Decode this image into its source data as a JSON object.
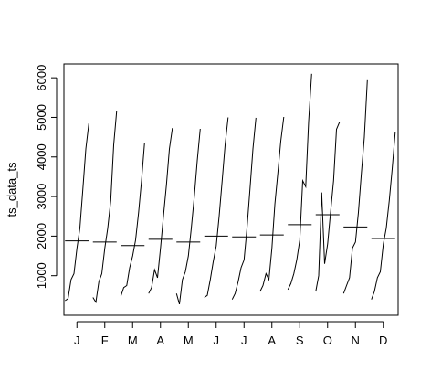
{
  "chart_data": {
    "type": "line",
    "title": "",
    "xlabel": "",
    "ylabel": "ts_data_ts",
    "ylim": [
      0,
      6350
    ],
    "yticks": [
      1000,
      2000,
      3000,
      4000,
      5000,
      6000
    ],
    "ytick_labels": [
      "1000",
      "2000",
      "3000",
      "4000",
      "5000",
      "6000"
    ],
    "categories": [
      "J",
      "F",
      "M",
      "A",
      "M",
      "J",
      "J",
      "A",
      "S",
      "O",
      "N",
      "D"
    ],
    "grid": false,
    "line_color": "#000000",
    "months": [
      {
        "label": "J",
        "mean": 1880,
        "values": [
          370,
          420,
          900,
          1050,
          1700,
          2200,
          3200,
          4200,
          4850
        ]
      },
      {
        "label": "F",
        "mean": 1850,
        "values": [
          450,
          330,
          850,
          1050,
          1700,
          2200,
          2900,
          4300,
          5170
        ]
      },
      {
        "label": "M",
        "mean": 1760,
        "values": [
          480,
          700,
          750,
          1200,
          1500,
          1900,
          2600,
          3400,
          4350
        ]
      },
      {
        "label": "A",
        "mean": 1920,
        "values": [
          550,
          700,
          1150,
          950,
          1700,
          2500,
          3300,
          4200,
          4730
        ]
      },
      {
        "label": "M",
        "mean": 1850,
        "values": [
          550,
          280,
          900,
          1100,
          1500,
          2200,
          3000,
          3900,
          4710
        ]
      },
      {
        "label": "J",
        "mean": 2000,
        "values": [
          450,
          500,
          900,
          1350,
          1750,
          2500,
          3400,
          4300,
          5000
        ]
      },
      {
        "label": "J",
        "mean": 1980,
        "values": [
          400,
          550,
          850,
          1200,
          1400,
          2200,
          3200,
          4200,
          4990
        ]
      },
      {
        "label": "A",
        "mean": 2030,
        "values": [
          600,
          750,
          1050,
          900,
          1700,
          2800,
          3600,
          4400,
          5010
        ]
      },
      {
        "label": "S",
        "mean": 2290,
        "values": [
          650,
          800,
          1050,
          1400,
          1900,
          3400,
          3250,
          4900,
          6100
        ]
      },
      {
        "label": "O",
        "mean": 2540,
        "values": [
          600,
          1000,
          3100,
          1300,
          1800,
          2600,
          3400,
          4700,
          4880
        ]
      },
      {
        "label": "N",
        "mean": 2230,
        "values": [
          550,
          750,
          950,
          1700,
          1850,
          2600,
          3600,
          4500,
          5940
        ]
      },
      {
        "label": "D",
        "mean": 1940,
        "values": [
          400,
          600,
          950,
          1100,
          1800,
          2200,
          2900,
          3700,
          4620
        ]
      }
    ]
  }
}
